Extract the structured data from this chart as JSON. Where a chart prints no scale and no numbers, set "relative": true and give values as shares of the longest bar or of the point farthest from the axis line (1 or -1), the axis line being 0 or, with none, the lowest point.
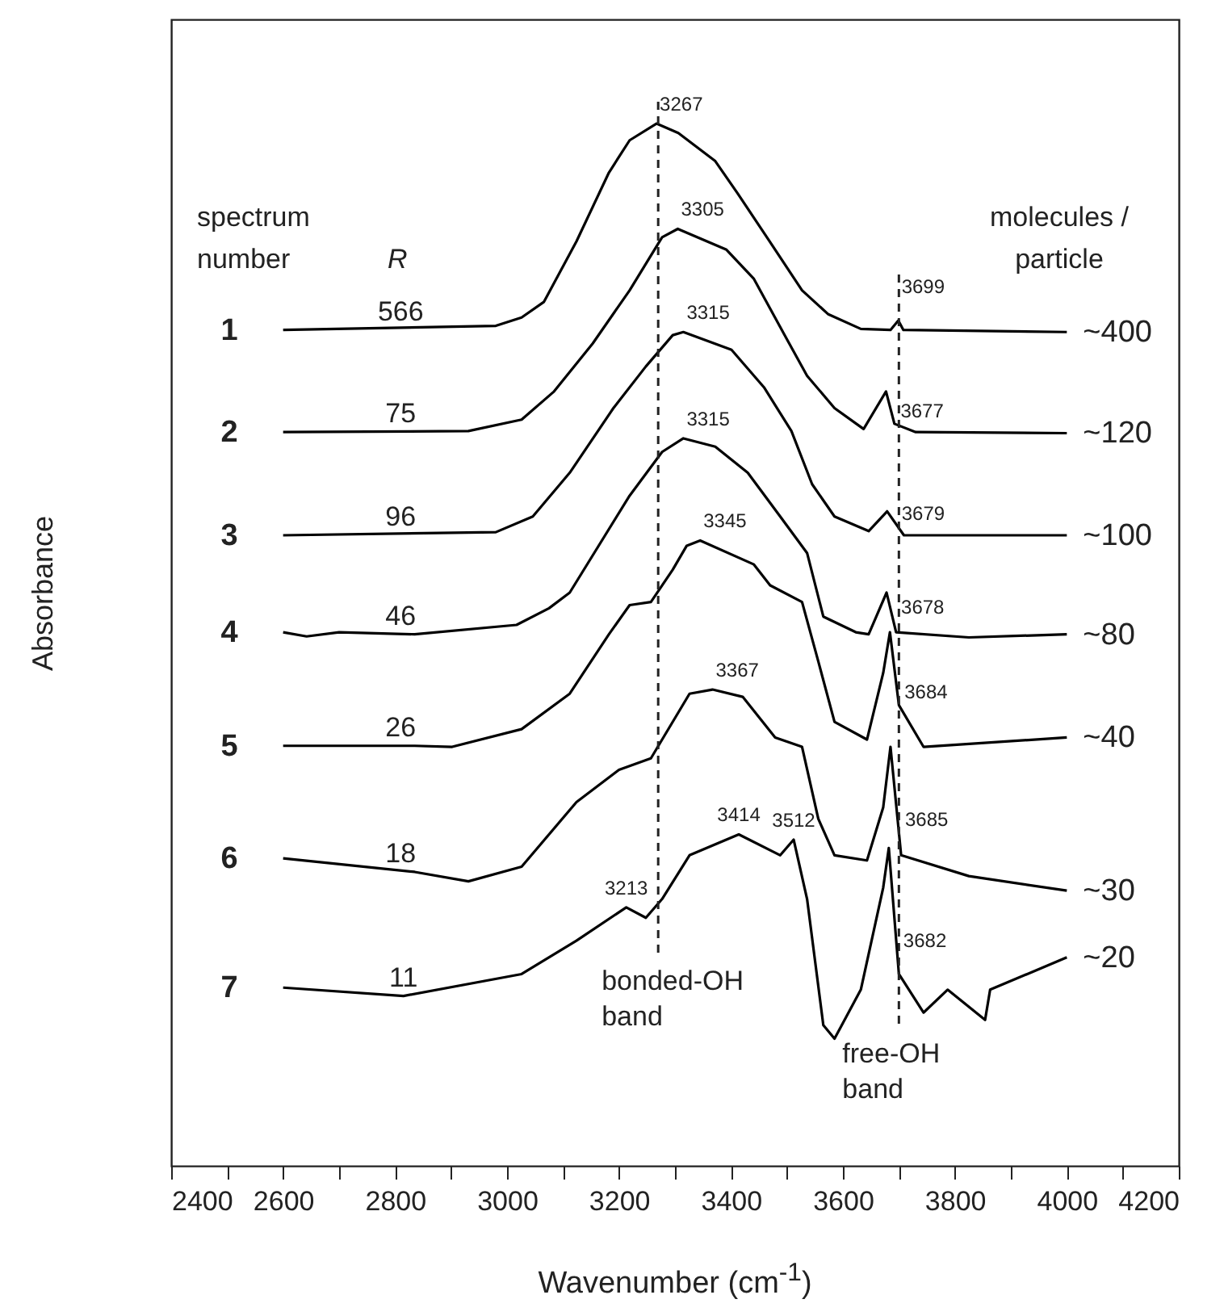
{
  "chart_data": {
    "type": "line",
    "relative": true,
    "xlabel": "Wavenumber (cm$^{-1}$)",
    "ylabel": "Absorbance",
    "xlim": [
      2400,
      4200
    ],
    "xticks": [
      2400,
      {
        "value": 2500,
        "label": null
      },
      2600,
      {
        "value": 2700,
        "label": null
      },
      2800,
      {
        "value": 2900,
        "label": null
      },
      3000,
      {
        "value": 3100,
        "label": null
      },
      3200,
      {
        "value": 3300,
        "label": null
      },
      3400,
      {
        "value": 3500,
        "label": null
      },
      3600,
      {
        "value": 3700,
        "label": null
      },
      3800,
      {
        "value": 3900,
        "label": null
      },
      4000,
      {
        "value": 4100,
        "label": null
      },
      4200
    ],
    "grid": false,
    "series": [
      {
        "color": "#000000",
        "x": [
          2600,
          2980,
          3026,
          3066,
          3124,
          3182,
          3219,
          3267,
          3306,
          3372,
          3412,
          3469,
          3527,
          3574,
          3632,
          3685,
          3699,
          3708,
          4000
        ],
        "values": [
          0.802,
          0.806,
          0.814,
          0.829,
          0.887,
          0.953,
          0.984,
          1.0,
          0.991,
          0.964,
          0.933,
          0.887,
          0.84,
          0.817,
          0.803,
          0.802,
          0.811,
          0.802,
          0.8
        ]
      },
      {
        "color": "#000000",
        "x": [
          2600,
          2931,
          3026,
          3084,
          3153,
          3219,
          3277,
          3305,
          3392,
          3441,
          3499,
          3536,
          3585,
          3637,
          3677,
          3692,
          3730,
          4000
        ],
        "values": [
          0.704,
          0.705,
          0.716,
          0.743,
          0.789,
          0.84,
          0.891,
          0.899,
          0.879,
          0.851,
          0.794,
          0.758,
          0.727,
          0.707,
          0.743,
          0.712,
          0.704,
          0.703
        ]
      },
      {
        "color": "#000000",
        "x": [
          2600,
          2980,
          3046,
          3112,
          3190,
          3248,
          3296,
          3315,
          3401,
          3459,
          3508,
          3545,
          3585,
          3646,
          3679,
          3709,
          4000
        ],
        "values": [
          0.605,
          0.608,
          0.623,
          0.665,
          0.727,
          0.767,
          0.797,
          0.8,
          0.783,
          0.747,
          0.705,
          0.654,
          0.623,
          0.609,
          0.628,
          0.605,
          0.605
        ]
      },
      {
        "color": "#000000",
        "x": [
          2600,
          2642,
          2700,
          2835,
          3017,
          3075,
          3112,
          3219,
          3277,
          3315,
          3372,
          3430,
          3488,
          3536,
          3565,
          3623,
          3646,
          3678,
          3695,
          3825,
          4000
        ],
        "values": [
          0.512,
          0.508,
          0.512,
          0.51,
          0.519,
          0.535,
          0.55,
          0.643,
          0.685,
          0.698,
          0.69,
          0.665,
          0.623,
          0.588,
          0.527,
          0.512,
          0.51,
          0.55,
          0.512,
          0.507,
          0.51
        ]
      },
      {
        "color": "#000000",
        "x": [
          2600,
          2835,
          2902,
          3026,
          3112,
          3182,
          3219,
          3257,
          3296,
          3321,
          3345,
          3441,
          3470,
          3527,
          3556,
          3585,
          3643,
          3672,
          3684,
          3700,
          3744,
          4000
        ],
        "values": [
          0.403,
          0.403,
          0.402,
          0.419,
          0.453,
          0.51,
          0.538,
          0.541,
          0.572,
          0.595,
          0.6,
          0.577,
          0.557,
          0.541,
          0.484,
          0.426,
          0.409,
          0.473,
          0.512,
          0.442,
          0.402,
          0.411
        ]
      },
      {
        "color": "#000000",
        "x": [
          2600,
          2835,
          2931,
          3026,
          3124,
          3200,
          3257,
          3326,
          3367,
          3421,
          3479,
          3527,
          3556,
          3585,
          3643,
          3672,
          3685,
          3704,
          3825,
          4000
        ],
        "values": [
          0.295,
          0.282,
          0.273,
          0.287,
          0.349,
          0.38,
          0.391,
          0.453,
          0.457,
          0.45,
          0.411,
          0.402,
          0.333,
          0.298,
          0.293,
          0.344,
          0.402,
          0.298,
          0.278,
          0.264
        ]
      },
      {
        "color": "#000000",
        "x": [
          2600,
          2815,
          3026,
          3124,
          3213,
          3248,
          3277,
          3326,
          3414,
          3488,
          3512,
          3536,
          3565,
          3585,
          3632,
          3672,
          3682,
          3700,
          3744,
          3787,
          3854,
          3863,
          4000
        ],
        "values": [
          0.171,
          0.163,
          0.184,
          0.216,
          0.248,
          0.238,
          0.256,
          0.298,
          0.318,
          0.298,
          0.313,
          0.256,
          0.135,
          0.122,
          0.169,
          0.267,
          0.305,
          0.184,
          0.147,
          0.169,
          0.14,
          0.169,
          0.2
        ]
      }
    ],
    "ref_lines": [
      {
        "axis": "x",
        "value": 3270,
        "label": "bonded-OH band",
        "line_style": "dashed"
      },
      {
        "axis": "x",
        "value": 3700,
        "label": "free-OH band",
        "line_style": "dashed"
      }
    ],
    "annotations": [
      "spectrum number",
      "R",
      "molecules / particle",
      {
        "text": "1",
        "x": 2600,
        "y": 0.802
      },
      {
        "text": "2",
        "x": 2600,
        "y": 0.704
      },
      {
        "text": "3",
        "x": 2600,
        "y": 0.605
      },
      {
        "text": "4",
        "x": 2600,
        "y": 0.512
      },
      {
        "text": "5",
        "x": 2600,
        "y": 0.403
      },
      {
        "text": "6",
        "x": 2600,
        "y": 0.295
      },
      {
        "text": "7",
        "x": 2600,
        "y": 0.171
      },
      {
        "text": "566",
        "x": 2810,
        "y": 0.802
      },
      {
        "text": "75",
        "x": 2810,
        "y": 0.704
      },
      {
        "text": "96",
        "x": 2810,
        "y": 0.605
      },
      {
        "text": "46",
        "x": 2810,
        "y": 0.51
      },
      {
        "text": "26",
        "x": 2810,
        "y": 0.403
      },
      {
        "text": "18",
        "x": 2810,
        "y": 0.282
      },
      {
        "text": "11",
        "x": 2815,
        "y": 0.163
      },
      {
        "text": "~400",
        "x": 4000,
        "y": 0.8
      },
      {
        "text": "~120",
        "x": 4000,
        "y": 0.703
      },
      {
        "text": "~100",
        "x": 4000,
        "y": 0.605
      },
      {
        "text": "~80",
        "x": 4000,
        "y": 0.51
      },
      {
        "text": "~40",
        "x": 4000,
        "y": 0.411
      },
      {
        "text": "~30",
        "x": 4000,
        "y": 0.264
      },
      {
        "text": "~20",
        "x": 4000,
        "y": 0.2
      },
      {
        "text": "3267",
        "x": 3267,
        "y": 1.0
      },
      {
        "text": "3305",
        "x": 3305,
        "y": 0.899
      },
      {
        "text": "3315",
        "x": 3315,
        "y": 0.8
      },
      {
        "text": "3315",
        "x": 3315,
        "y": 0.698
      },
      {
        "text": "3345",
        "x": 3345,
        "y": 0.6
      },
      {
        "text": "3367",
        "x": 3367,
        "y": 0.457
      },
      {
        "text": "3213",
        "x": 3213,
        "y": 0.248
      },
      {
        "text": "3414",
        "x": 3414,
        "y": 0.318
      },
      {
        "text": "3512",
        "x": 3512,
        "y": 0.313
      },
      {
        "text": "3699",
        "x": 3699,
        "y": 0.825
      },
      {
        "text": "3677",
        "x": 3677,
        "y": 0.724
      },
      {
        "text": "3679",
        "x": 3679,
        "y": 0.626
      },
      {
        "text": "3678",
        "x": 3678,
        "y": 0.536
      },
      {
        "text": "3684",
        "x": 3684,
        "y": 0.455
      },
      {
        "text": "3685",
        "x": 3685,
        "y": 0.332
      },
      {
        "text": "3682",
        "x": 3682,
        "y": 0.216
      }
    ]
  }
}
